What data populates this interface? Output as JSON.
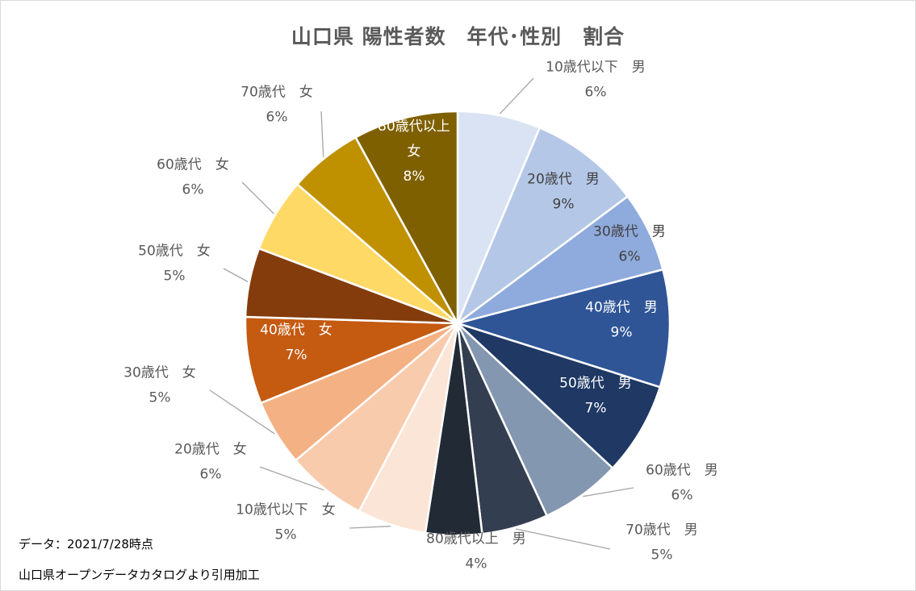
{
  "chart_data": {
    "type": "pie",
    "title": "山口県 陽性者数　年代･性別　割合",
    "start_angle_deg": 0,
    "direction": "clockwise",
    "slices": [
      {
        "label": "10歳代以下　男",
        "percent": "6%",
        "value": 6.5,
        "color": "#dae3f3",
        "label_inside": false,
        "text_color": "#595959"
      },
      {
        "label": "20歳代　男",
        "percent": "9%",
        "value": 8.7,
        "color": "#b4c7e7",
        "label_inside": true,
        "text_color": "#404040"
      },
      {
        "label": "30歳代　男",
        "percent": "6%",
        "value": 6.3,
        "color": "#8faadc",
        "label_inside": true,
        "text_color": "#404040"
      },
      {
        "label": "40歳代　男",
        "percent": "9%",
        "value": 9.2,
        "color": "#2f5597",
        "label_inside": true,
        "text_color": "#ffffff"
      },
      {
        "label": "50歳代　男",
        "percent": "7%",
        "value": 7.3,
        "color": "#1f3864",
        "label_inside": true,
        "text_color": "#ffffff"
      },
      {
        "label": "60歳代　男",
        "percent": "6%",
        "value": 6.3,
        "color": "#8497b0",
        "label_inside": false,
        "text_color": "#595959"
      },
      {
        "label": "70歳代　男",
        "percent": "5%",
        "value": 5.2,
        "color": "#333f50",
        "label_inside": false,
        "text_color": "#595959"
      },
      {
        "label": "80歳代以上　男",
        "percent": "4%",
        "value": 4.4,
        "color": "#222a35",
        "label_inside": false,
        "text_color": "#595959"
      },
      {
        "label": "10歳代以下　女",
        "percent": "5%",
        "value": 5.4,
        "color": "#fbe5d6",
        "label_inside": false,
        "text_color": "#595959"
      },
      {
        "label": "20歳代　女",
        "percent": "6%",
        "value": 6.3,
        "color": "#f8cbad",
        "label_inside": false,
        "text_color": "#595959"
      },
      {
        "label": "30歳代　女",
        "percent": "5%",
        "value": 5.2,
        "color": "#f4b183",
        "label_inside": false,
        "text_color": "#595959"
      },
      {
        "label": "40歳代　女",
        "percent": "7%",
        "value": 6.8,
        "color": "#c55a11",
        "label_inside": true,
        "text_color": "#ffffff"
      },
      {
        "label": "50歳代　女",
        "percent": "5%",
        "value": 5.4,
        "color": "#843c0c",
        "label_inside": false,
        "text_color": "#595959"
      },
      {
        "label": "60歳代　女",
        "percent": "6%",
        "value": 5.8,
        "color": "#ffd966",
        "label_inside": false,
        "text_color": "#595959"
      },
      {
        "label": "70歳代　女",
        "percent": "6%",
        "value": 5.8,
        "color": "#bf9000",
        "label_inside": false,
        "text_color": "#595959"
      },
      {
        "label": "80歳代以上\n女",
        "percent": "8%",
        "value": 8.2,
        "color": "#7f6000",
        "label_inside": true,
        "text_color": "#ffffff"
      }
    ]
  },
  "notes": {
    "data_date": "データ：2021/7/28時点",
    "source": "山口県オープンデータカタログより引用加工"
  }
}
